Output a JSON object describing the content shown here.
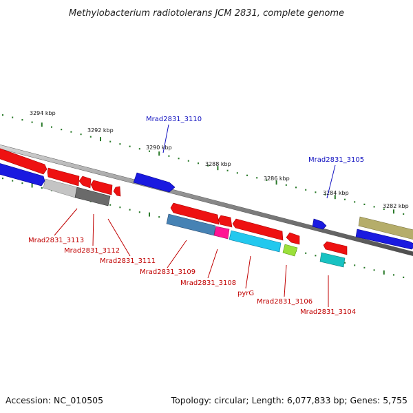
{
  "title": "Methylobacterium radiotolerans JCM 2831, complete genome",
  "footer": {
    "accession": "Accession: NC_010505",
    "topology": "Topology: circular; Length: 6,077,833 bp; Genes: 5,755"
  },
  "ruler_labels": [
    "3294 kbp",
    "3292 kbp",
    "3290 kbp",
    "3288 kbp",
    "3286 kbp",
    "3284 kbp",
    "3282 kbp"
  ],
  "gene_labels_top": [
    "Mrad2831_3110",
    "Mrad2831_3105"
  ],
  "gene_labels_bottom": [
    "Mrad2831_3113",
    "Mrad2831_3112",
    "Mrad2831_3111",
    "Mrad2831_3109",
    "Mrad2831_3108",
    "pyrG",
    "Mrad2831_3106",
    "Mrad2831_3104"
  ],
  "colors": {
    "backbone": "#8a8a8a",
    "ruler_ticks": "#2a7a2a",
    "label_blue": "#1010c0",
    "label_red": "#c00000",
    "gene_red": "#ee1111",
    "gene_blue": "#1a1ae0",
    "gene_gray_light": "#c4c4c4",
    "gene_gray_dark": "#6a6a6a",
    "gene_steelblue": "#4682b4",
    "gene_magenta": "#ff1493",
    "gene_cyan": "#22c8ee",
    "gene_green": "#9be03a",
    "gene_teal": "#18c2c2",
    "gene_olive": "#b5ad6a"
  }
}
